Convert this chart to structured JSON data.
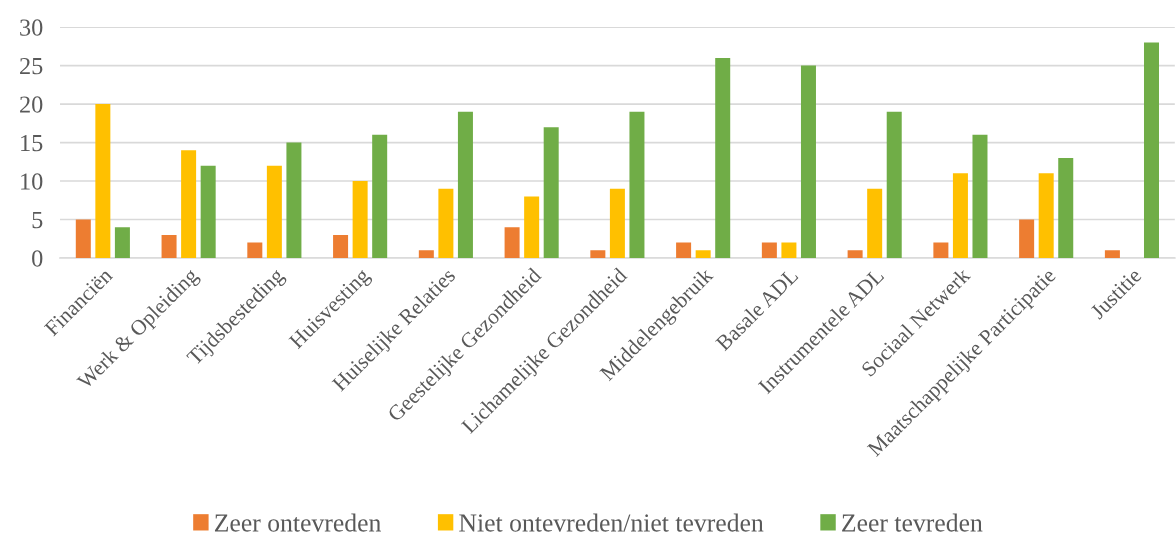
{
  "chart_data": {
    "type": "bar",
    "categories": [
      "Financiën",
      "Werk & Opleiding",
      "Tijdsbesteding",
      "Huisvesting",
      "Huiselijke Relaties",
      "Geestelijke Gezondheid",
      "Lichamelijke Gezondheid",
      "Middelengebruik",
      "Basale ADL",
      "Instrumentele ADL",
      "Sociaal Netwerk",
      "Maatschappelijke Participatie",
      "Justitie"
    ],
    "series": [
      {
        "name": "Zeer ontevreden",
        "color": "#ed7d31",
        "values": [
          5,
          3,
          2,
          3,
          1,
          4,
          1,
          2,
          2,
          1,
          2,
          5,
          1
        ]
      },
      {
        "name": "Niet ontevreden/niet tevreden",
        "color": "#ffc000",
        "values": [
          20,
          14,
          12,
          10,
          9,
          8,
          9,
          1,
          2,
          9,
          11,
          11,
          0
        ]
      },
      {
        "name": "Zeer tevreden",
        "color": "#70ad47",
        "values": [
          4,
          12,
          15,
          16,
          19,
          17,
          19,
          26,
          25,
          19,
          16,
          13,
          28
        ]
      }
    ],
    "ylim": [
      0,
      30
    ],
    "yticks": [
      0,
      5,
      10,
      15,
      20,
      25,
      30
    ],
    "grid": "y",
    "legend": "bottom"
  }
}
